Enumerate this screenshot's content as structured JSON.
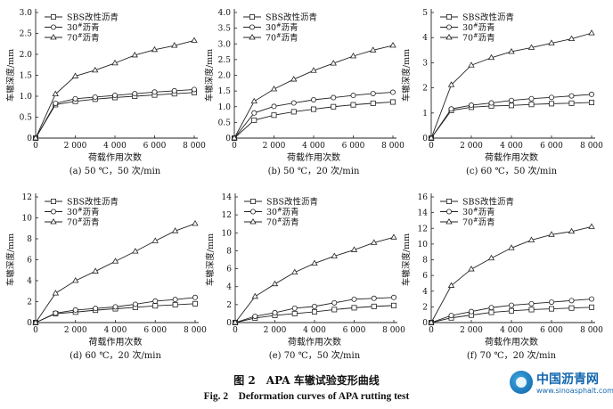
{
  "figure": {
    "caption_cn": "图 2　APA 车辙试验变形曲线",
    "caption_en": "Fig. 2　Deformation curves of APA rutting test"
  },
  "watermark": {
    "name": "中国沥青网",
    "url": "www.sinoasphalt.com"
  },
  "chart_data": [
    {
      "type": "line",
      "panel_label": "(a) 50 ℃，50 次/min",
      "xlabel": "荷载作用次数",
      "ylabel": "车辙深度/mm",
      "xlim": [
        0,
        8000
      ],
      "ylim": [
        0,
        3.0
      ],
      "xticks": [
        0,
        2000,
        4000,
        6000,
        8000
      ],
      "xtick_labels": [
        "0",
        "2 000",
        "4 000",
        "6 000",
        "8 000"
      ],
      "yticks": [
        0,
        0.5,
        1.0,
        1.5,
        2.0,
        2.5,
        3.0
      ],
      "ytick_labels": [
        "0",
        "0.5",
        "1.0",
        "1.5",
        "2.0",
        "2.5",
        "3.0"
      ],
      "legend_position": "top-left",
      "x": [
        0,
        1000,
        2000,
        3000,
        4000,
        5000,
        6000,
        7000,
        8000
      ],
      "series": [
        {
          "name": "SBS改性沥青",
          "marker": "square",
          "values": [
            0,
            0.8,
            0.88,
            0.93,
            0.97,
            1.0,
            1.03,
            1.06,
            1.09
          ]
        },
        {
          "name": "30#沥青",
          "marker": "circle",
          "values": [
            0,
            0.83,
            0.94,
            0.98,
            1.02,
            1.06,
            1.1,
            1.13,
            1.16
          ]
        },
        {
          "name": "70#沥青",
          "marker": "triangle",
          "values": [
            0,
            1.05,
            1.48,
            1.62,
            1.79,
            1.98,
            2.11,
            2.21,
            2.33
          ]
        }
      ]
    },
    {
      "type": "line",
      "panel_label": "(b) 50 ℃，20 次/min",
      "xlabel": "荷载作用次数",
      "ylabel": "车辙深度/mm",
      "xlim": [
        0,
        8000
      ],
      "ylim": [
        0,
        4.0
      ],
      "xticks": [
        0,
        2000,
        4000,
        6000,
        8000
      ],
      "xtick_labels": [
        "0",
        "2 000",
        "4 000",
        "6 000",
        "8 000"
      ],
      "yticks": [
        0,
        0.5,
        1.0,
        1.5,
        2.0,
        2.5,
        3.0,
        3.5,
        4.0
      ],
      "ytick_labels": [
        "0",
        "0.5",
        "1.0",
        "1.5",
        "2.0",
        "2.5",
        "3.0",
        "3.5",
        "4.0"
      ],
      "legend_position": "top-left",
      "x": [
        0,
        1000,
        2000,
        3000,
        4000,
        5000,
        6000,
        7000,
        8000
      ],
      "series": [
        {
          "name": "SBS改性沥青",
          "marker": "square",
          "values": [
            0,
            0.57,
            0.73,
            0.84,
            0.92,
            1.0,
            1.06,
            1.11,
            1.15
          ]
        },
        {
          "name": "30#沥青",
          "marker": "circle",
          "values": [
            0,
            0.8,
            1.01,
            1.12,
            1.22,
            1.29,
            1.36,
            1.42,
            1.46
          ]
        },
        {
          "name": "70#沥青",
          "marker": "triangle",
          "values": [
            0,
            1.17,
            1.56,
            1.87,
            2.15,
            2.38,
            2.61,
            2.8,
            2.95
          ]
        }
      ]
    },
    {
      "type": "line",
      "panel_label": "(c) 60 ℃，50 次/min",
      "xlabel": "荷载作用次数",
      "ylabel": "车辙深度/mm",
      "xlim": [
        0,
        8000
      ],
      "ylim": [
        0,
        5
      ],
      "xticks": [
        0,
        2000,
        4000,
        6000,
        8000
      ],
      "xtick_labels": [
        "0",
        "2 000",
        "4 000",
        "6 000",
        "8 000"
      ],
      "yticks": [
        0,
        1,
        2,
        3,
        4,
        5
      ],
      "ytick_labels": [
        "0",
        "1",
        "2",
        "3",
        "4",
        "5"
      ],
      "legend_position": "top-left",
      "x": [
        0,
        1000,
        2000,
        3000,
        4000,
        5000,
        6000,
        7000,
        8000
      ],
      "series": [
        {
          "name": "SBS改性沥青",
          "marker": "square",
          "values": [
            0,
            1.1,
            1.23,
            1.28,
            1.3,
            1.34,
            1.37,
            1.39,
            1.42
          ]
        },
        {
          "name": "30#沥青",
          "marker": "circle",
          "values": [
            0,
            1.16,
            1.31,
            1.4,
            1.5,
            1.57,
            1.62,
            1.68,
            1.74
          ]
        },
        {
          "name": "70#沥青",
          "marker": "triangle",
          "values": [
            0,
            2.12,
            2.9,
            3.2,
            3.44,
            3.6,
            3.78,
            3.95,
            4.18
          ]
        }
      ]
    },
    {
      "type": "line",
      "panel_label": "(d) 60 ℃，20 次/min",
      "xlabel": "荷载作用次数",
      "ylabel": "车辙深度/mm",
      "xlim": [
        0,
        8000
      ],
      "ylim": [
        0,
        12
      ],
      "xticks": [
        0,
        2000,
        4000,
        6000,
        8000
      ],
      "xtick_labels": [
        "0",
        "2 000",
        "4 000",
        "6 000",
        "8 000"
      ],
      "yticks": [
        0,
        2,
        4,
        6,
        8,
        10,
        12
      ],
      "ytick_labels": [
        "0",
        "2",
        "4",
        "6",
        "8",
        "10",
        "12"
      ],
      "legend_position": "top-left",
      "x": [
        0,
        1000,
        2000,
        3000,
        4000,
        5000,
        6000,
        7000,
        8000
      ],
      "series": [
        {
          "name": "SBS改性沥青",
          "marker": "square",
          "values": [
            0,
            0.85,
            1.0,
            1.18,
            1.32,
            1.45,
            1.6,
            1.7,
            1.8
          ]
        },
        {
          "name": "30#沥青",
          "marker": "circle",
          "values": [
            0,
            0.9,
            1.2,
            1.35,
            1.5,
            1.75,
            2.05,
            2.2,
            2.4
          ]
        },
        {
          "name": "70#沥青",
          "marker": "triangle",
          "values": [
            0,
            2.8,
            4.0,
            4.9,
            5.85,
            6.8,
            7.8,
            8.75,
            9.45
          ]
        }
      ]
    },
    {
      "type": "line",
      "panel_label": "(e) 70 ℃，50 次/min",
      "xlabel": "荷载作用次数",
      "ylabel": "车辙深度/mm",
      "xlim": [
        0,
        8000
      ],
      "ylim": [
        0,
        14
      ],
      "xticks": [
        0,
        2000,
        4000,
        6000,
        8000
      ],
      "xtick_labels": [
        "0",
        "2 000",
        "4 000",
        "6 000",
        "8 000"
      ],
      "yticks": [
        0,
        2,
        4,
        6,
        8,
        10,
        12,
        14
      ],
      "ytick_labels": [
        "0",
        "2",
        "4",
        "6",
        "8",
        "10",
        "12",
        "14"
      ],
      "legend_position": "top-left",
      "x": [
        0,
        1000,
        2000,
        3000,
        4000,
        5000,
        6000,
        7000,
        8000
      ],
      "series": [
        {
          "name": "SBS改性沥青",
          "marker": "square",
          "values": [
            0,
            0.5,
            0.8,
            1.0,
            1.2,
            1.45,
            1.65,
            1.8,
            1.9
          ]
        },
        {
          "name": "30#沥青",
          "marker": "circle",
          "values": [
            0,
            0.7,
            1.1,
            1.6,
            1.8,
            2.2,
            2.6,
            2.7,
            2.8
          ]
        },
        {
          "name": "70#沥青",
          "marker": "triangle",
          "values": [
            0,
            2.9,
            4.3,
            5.6,
            6.6,
            7.4,
            8.1,
            8.9,
            9.5
          ]
        }
      ]
    },
    {
      "type": "line",
      "panel_label": "(f) 70 ℃，20 次/min",
      "xlabel": "荷载作用次数",
      "ylabel": "车辙深度/mm",
      "xlim": [
        0,
        8000
      ],
      "ylim": [
        0,
        16
      ],
      "xticks": [
        0,
        2000,
        4000,
        6000,
        8000
      ],
      "xtick_labels": [
        "0",
        "2 000",
        "4 000",
        "6 000",
        "8 000"
      ],
      "yticks": [
        0,
        2,
        4,
        6,
        8,
        10,
        12,
        14,
        16
      ],
      "ytick_labels": [
        "0",
        "2",
        "4",
        "6",
        "8",
        "10",
        "12",
        "14",
        "16"
      ],
      "legend_position": "top-left",
      "x": [
        0,
        1000,
        2000,
        3000,
        4000,
        5000,
        6000,
        7000,
        8000
      ],
      "series": [
        {
          "name": "SBS改性沥青",
          "marker": "square",
          "values": [
            0,
            0.6,
            0.95,
            1.3,
            1.5,
            1.65,
            1.75,
            1.85,
            1.95
          ]
        },
        {
          "name": "30#沥青",
          "marker": "circle",
          "values": [
            0,
            0.9,
            1.4,
            1.9,
            2.2,
            2.4,
            2.6,
            2.8,
            3.0
          ]
        },
        {
          "name": "70#沥青",
          "marker": "triangle",
          "values": [
            0,
            4.7,
            6.8,
            8.2,
            9.5,
            10.5,
            11.2,
            11.6,
            12.2
          ]
        }
      ]
    }
  ]
}
